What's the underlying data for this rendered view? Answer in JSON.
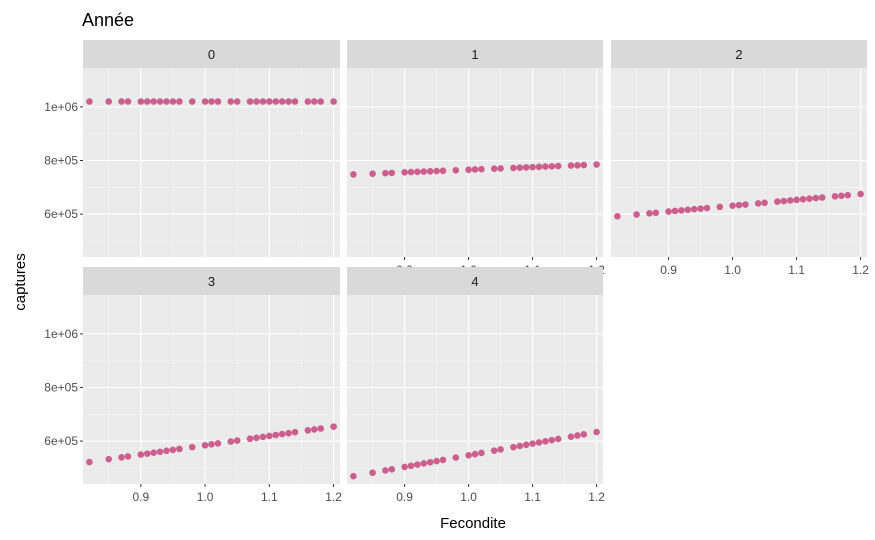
{
  "chart_data": {
    "type": "scatter",
    "title": "Année",
    "xlabel": "Fecondite",
    "ylabel": "captures",
    "xlim": [
      0.81,
      1.21
    ],
    "ylim": [
      440000,
      1145000
    ],
    "x_ticks": [
      0.9,
      1.0,
      1.1,
      1.2
    ],
    "x_tick_labels": [
      "0.9",
      "1.0",
      "1.1",
      "1.2"
    ],
    "y_ticks": [
      600000,
      800000,
      1000000
    ],
    "y_tick_labels": [
      "6e+05",
      "8e+05",
      "1e+06"
    ],
    "grid": true,
    "point_color": "#CC5F8F",
    "x": [
      0.82,
      0.85,
      0.87,
      0.88,
      0.9,
      0.91,
      0.92,
      0.93,
      0.94,
      0.95,
      0.96,
      0.98,
      1.0,
      1.01,
      1.02,
      1.04,
      1.05,
      1.07,
      1.08,
      1.09,
      1.1,
      1.11,
      1.12,
      1.13,
      1.14,
      1.16,
      1.17,
      1.18,
      1.2
    ],
    "panels": [
      {
        "facet": "0",
        "y_start": 1020000,
        "y_end": 1020000
      },
      {
        "facet": "1",
        "y_start": 748000,
        "y_end": 785000
      },
      {
        "facet": "2",
        "y_start": 592000,
        "y_end": 675000
      },
      {
        "facet": "3",
        "y_start": 522000,
        "y_end": 654000
      },
      {
        "facet": "4",
        "y_start": 469000,
        "y_end": 634000
      }
    ]
  }
}
